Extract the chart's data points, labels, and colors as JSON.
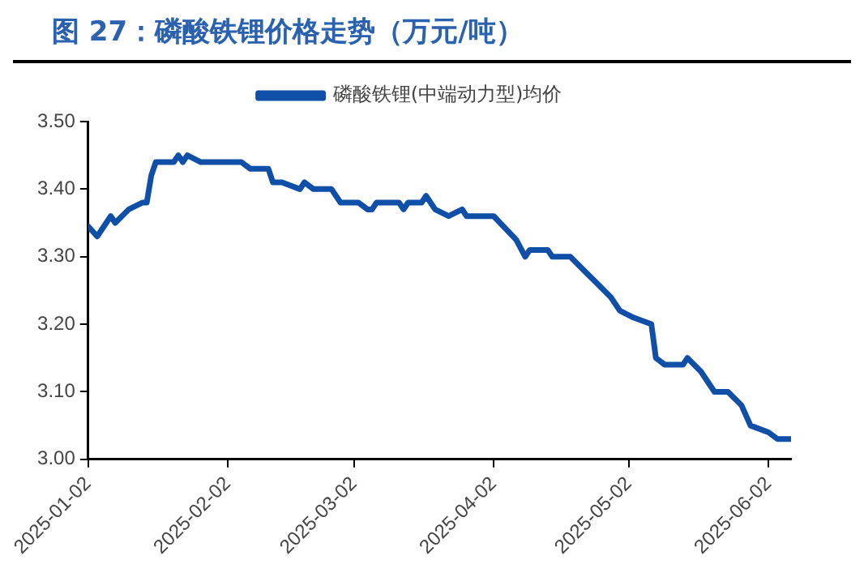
{
  "chart_data": {
    "type": "line",
    "title": "图 27：磷酸铁锂价格走势（万元/吨）",
    "x": [
      "2025-01-02",
      "2025-01-04",
      "2025-01-07",
      "2025-01-08",
      "2025-01-11",
      "2025-01-14",
      "2025-01-15",
      "2025-01-16",
      "2025-01-17",
      "2025-01-21",
      "2025-01-22",
      "2025-01-23",
      "2025-01-24",
      "2025-01-27",
      "2025-02-05",
      "2025-02-07",
      "2025-02-11",
      "2025-02-12",
      "2025-02-14",
      "2025-02-18",
      "2025-02-19",
      "2025-02-21",
      "2025-02-25",
      "2025-02-27",
      "2025-03-03",
      "2025-03-05",
      "2025-03-06",
      "2025-03-07",
      "2025-03-12",
      "2025-03-13",
      "2025-03-14",
      "2025-03-17",
      "2025-03-18",
      "2025-03-20",
      "2025-03-23",
      "2025-03-26",
      "2025-03-27",
      "2025-04-02",
      "2025-04-07",
      "2025-04-09",
      "2025-04-10",
      "2025-04-14",
      "2025-04-15",
      "2025-04-19",
      "2025-04-22",
      "2025-04-25",
      "2025-04-28",
      "2025-04-30",
      "2025-05-03",
      "2025-05-07",
      "2025-05-08",
      "2025-05-10",
      "2025-05-14",
      "2025-05-15",
      "2025-05-18",
      "2025-05-21",
      "2025-05-24",
      "2025-05-27",
      "2025-05-29",
      "2025-06-02",
      "2025-06-04",
      "2025-06-07"
    ],
    "series": [
      {
        "name": "磷酸铁锂(中端动力型)均价",
        "color": "#0f4fa8",
        "values": [
          3.345,
          3.33,
          3.36,
          3.35,
          3.37,
          3.38,
          3.38,
          3.42,
          3.44,
          3.44,
          3.45,
          3.44,
          3.45,
          3.44,
          3.44,
          3.43,
          3.43,
          3.41,
          3.41,
          3.4,
          3.41,
          3.4,
          3.4,
          3.38,
          3.38,
          3.37,
          3.37,
          3.38,
          3.38,
          3.37,
          3.38,
          3.38,
          3.39,
          3.37,
          3.36,
          3.37,
          3.36,
          3.36,
          3.325,
          3.3,
          3.31,
          3.31,
          3.3,
          3.3,
          3.28,
          3.26,
          3.24,
          3.22,
          3.21,
          3.2,
          3.15,
          3.14,
          3.14,
          3.15,
          3.13,
          3.1,
          3.1,
          3.08,
          3.05,
          3.04,
          3.03,
          3.03
        ]
      }
    ],
    "xlim": [
      "2025-01-02",
      "2025-06-07"
    ],
    "xticks": [
      "2025-01-02",
      "2025-02-02",
      "2025-03-02",
      "2025-04-02",
      "2025-05-02",
      "2025-06-02"
    ],
    "ylim": [
      3.0,
      3.5
    ],
    "yticks": [
      {
        "value": 3.0,
        "label": "3.00"
      },
      {
        "value": 3.1,
        "label": "3.10"
      },
      {
        "value": 3.2,
        "label": "3.20"
      },
      {
        "value": 3.3,
        "label": "3.30"
      },
      {
        "value": 3.4,
        "label": "3.40"
      },
      {
        "value": 3.5,
        "label": "3.50"
      }
    ],
    "grid": false,
    "legend": "top",
    "marker": "none",
    "line_style": "solid"
  }
}
